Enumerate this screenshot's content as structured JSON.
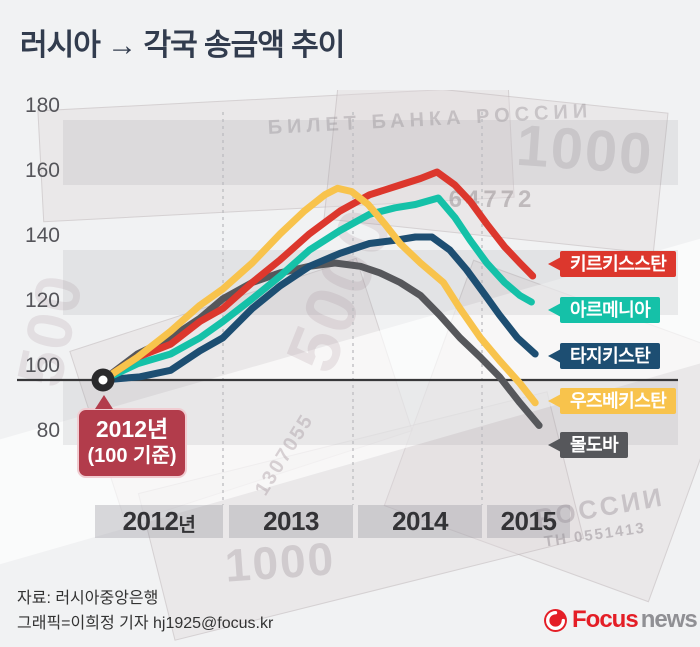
{
  "title": "러시아 → 각국 송금액 추이",
  "y_axis": {
    "labels": [
      180,
      160,
      140,
      120,
      100,
      80
    ]
  },
  "x_axis": {
    "labels": [
      {
        "text": "2012",
        "suffix": "년"
      },
      {
        "text": "2013",
        "suffix": ""
      },
      {
        "text": "2014",
        "suffix": ""
      },
      {
        "text": "2015",
        "suffix": ""
      }
    ]
  },
  "callout": {
    "line1": "2012년",
    "line2": "(100 기준)"
  },
  "footer": {
    "source": "자료: 러시아중앙은행",
    "credit": "그래픽=이희정 기자 hj1925@focus.kr"
  },
  "logo": {
    "focus": "Focus",
    "news": "news"
  },
  "background": {
    "watermarks": {
      "big5000": "5000",
      "left500": "500",
      "bottom1000": "1000",
      "top1000": "1000",
      "serial_top": "64772",
      "bank_text": "БИЛЕТ БАНКА РОССИИ",
      "serial_mid": "1307055",
      "rossii": "РОССИИ",
      "serial_bottom": "ТН 0551413"
    }
  },
  "chart_data": {
    "type": "line",
    "title": "러시아 → 각국 송금액 추이",
    "baseline_note": "2012년 = 100 기준",
    "xlabel": "",
    "ylabel": "",
    "x_years": [
      "2012",
      "2013",
      "2014",
      "2015"
    ],
    "ylim": [
      75,
      185
    ],
    "y_ticks": [
      180,
      160,
      140,
      120,
      100,
      80
    ],
    "gray_bands": [
      [
        160,
        180
      ],
      [
        120,
        140
      ],
      [
        80,
        100
      ]
    ],
    "legend_position": "right",
    "series": [
      {
        "name": "키르키스스탄",
        "color": "#dc372d",
        "points": [
          [
            2012.0,
            100
          ],
          [
            2012.27,
            107
          ],
          [
            2012.53,
            111
          ],
          [
            2012.76,
            118
          ],
          [
            2012.94,
            122
          ],
          [
            2013.17,
            130
          ],
          [
            2013.39,
            137
          ],
          [
            2013.62,
            145
          ],
          [
            2013.86,
            152
          ],
          [
            2014.09,
            157
          ],
          [
            2014.33,
            160
          ],
          [
            2014.49,
            162
          ],
          [
            2014.62,
            164
          ],
          [
            2014.76,
            160
          ],
          [
            2014.88,
            155
          ],
          [
            2015.01,
            148
          ],
          [
            2015.15,
            141
          ],
          [
            2015.27,
            136
          ],
          [
            2015.37,
            132
          ]
        ]
      },
      {
        "name": "아르메니아",
        "color": "#15c1a8",
        "points": [
          [
            2012.0,
            100
          ],
          [
            2012.27,
            105
          ],
          [
            2012.53,
            108
          ],
          [
            2012.76,
            113
          ],
          [
            2012.94,
            118
          ],
          [
            2013.17,
            125
          ],
          [
            2013.39,
            132
          ],
          [
            2013.62,
            140
          ],
          [
            2013.86,
            146
          ],
          [
            2014.09,
            151
          ],
          [
            2014.29,
            153
          ],
          [
            2014.45,
            154
          ],
          [
            2014.63,
            156
          ],
          [
            2014.76,
            150
          ],
          [
            2014.88,
            143
          ],
          [
            2015.01,
            136
          ],
          [
            2015.15,
            130
          ],
          [
            2015.27,
            126
          ],
          [
            2015.36,
            124
          ]
        ]
      },
      {
        "name": "타지키스탄",
        "color": "#1d4e72",
        "points": [
          [
            2012.0,
            100
          ],
          [
            2012.29,
            101
          ],
          [
            2012.53,
            103
          ],
          [
            2012.76,
            109
          ],
          [
            2012.94,
            113
          ],
          [
            2013.17,
            122
          ],
          [
            2013.39,
            129
          ],
          [
            2013.62,
            135
          ],
          [
            2013.86,
            139
          ],
          [
            2014.09,
            142
          ],
          [
            2014.29,
            143
          ],
          [
            2014.45,
            144
          ],
          [
            2014.58,
            144
          ],
          [
            2014.72,
            140
          ],
          [
            2014.85,
            134
          ],
          [
            2015.0,
            126
          ],
          [
            2015.11,
            120
          ],
          [
            2015.25,
            113
          ],
          [
            2015.39,
            108
          ]
        ]
      },
      {
        "name": "우즈베키스탄",
        "color": "#f8c34c",
        "points": [
          [
            2012.0,
            100
          ],
          [
            2012.27,
            107
          ],
          [
            2012.53,
            115
          ],
          [
            2012.76,
            123
          ],
          [
            2012.94,
            128
          ],
          [
            2013.17,
            136
          ],
          [
            2013.39,
            145
          ],
          [
            2013.58,
            152
          ],
          [
            2013.74,
            157
          ],
          [
            2013.84,
            159
          ],
          [
            2013.95,
            158
          ],
          [
            2014.08,
            154
          ],
          [
            2014.21,
            148
          ],
          [
            2014.33,
            142
          ],
          [
            2014.49,
            136
          ],
          [
            2014.67,
            130
          ],
          [
            2014.8,
            122
          ],
          [
            2014.96,
            113
          ],
          [
            2015.11,
            106
          ],
          [
            2015.27,
            99
          ],
          [
            2015.39,
            93
          ]
        ]
      },
      {
        "name": "몰도바",
        "color": "#56575b",
        "points": [
          [
            2012.0,
            100
          ],
          [
            2012.27,
            108
          ],
          [
            2012.53,
            113
          ],
          [
            2012.76,
            119
          ],
          [
            2012.94,
            125
          ],
          [
            2013.17,
            130
          ],
          [
            2013.39,
            133
          ],
          [
            2013.62,
            135
          ],
          [
            2013.82,
            136
          ],
          [
            2014.02,
            135
          ],
          [
            2014.17,
            133
          ],
          [
            2014.33,
            130
          ],
          [
            2014.49,
            126
          ],
          [
            2014.64,
            120
          ],
          [
            2014.8,
            113
          ],
          [
            2014.96,
            107
          ],
          [
            2015.11,
            101
          ],
          [
            2015.27,
            93
          ],
          [
            2015.42,
            86
          ]
        ]
      }
    ]
  }
}
